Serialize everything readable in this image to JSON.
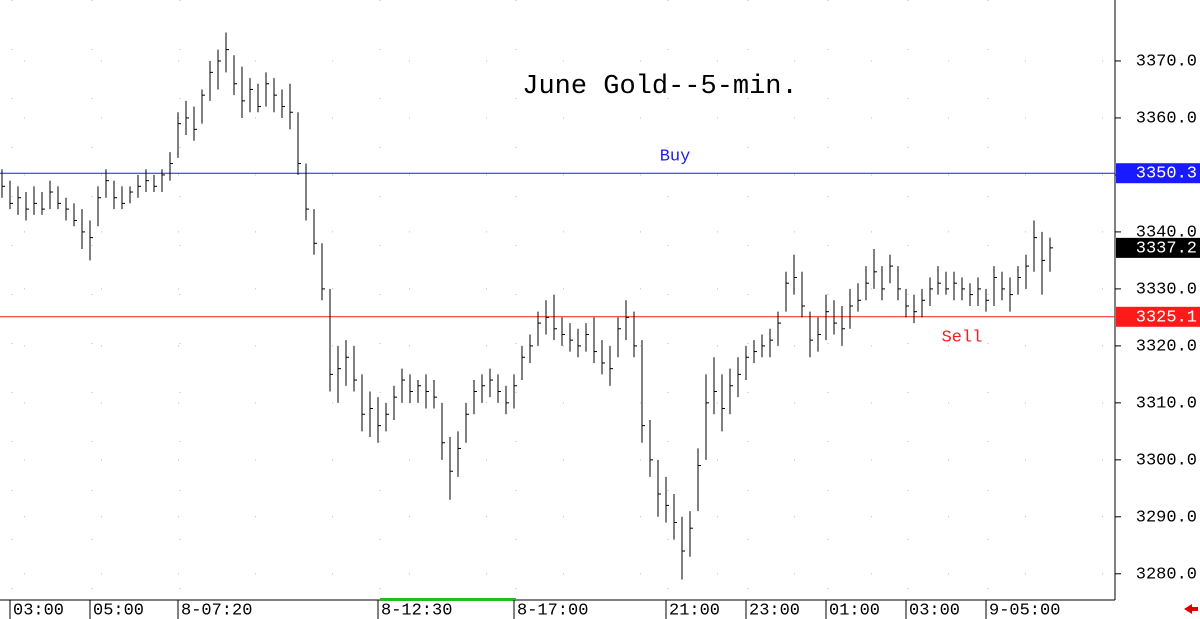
{
  "chart_data": {
    "type": "ohlc",
    "title": "June Gold--5-min.",
    "categories": [
      null,
      "03:00",
      null,
      null,
      null,
      null,
      null,
      null,
      null,
      null,
      null,
      "05:00",
      null,
      null,
      null,
      null,
      null,
      null,
      null,
      null,
      null,
      null,
      "8-07:20",
      null,
      null,
      null,
      null,
      null,
      null,
      null,
      null,
      null,
      null,
      null,
      null,
      null,
      null,
      null,
      null,
      null,
      null,
      null,
      null,
      null,
      null,
      null,
      null,
      "8-12:30",
      null,
      null,
      null,
      null,
      null,
      null,
      null,
      null,
      null,
      null,
      null,
      null,
      null,
      null,
      null,
      null,
      "8-17:00",
      null,
      null,
      null,
      null,
      null,
      null,
      null,
      null,
      null,
      null,
      null,
      null,
      null,
      null,
      null,
      null,
      null,
      null,
      "21:00",
      null,
      null,
      null,
      null,
      null,
      null,
      null,
      null,
      null,
      "23:00",
      null,
      null,
      null,
      null,
      null,
      null,
      null,
      null,
      null,
      "01:00",
      null,
      null,
      null,
      null,
      null,
      null,
      null,
      null,
      null,
      "03:00",
      null,
      null,
      null,
      null,
      null,
      null,
      null,
      null,
      null,
      "9-05:00",
      null,
      null,
      null,
      null,
      null,
      null,
      null,
      null
    ],
    "high": [
      3351,
      3349,
      3348,
      3347,
      3348,
      3347,
      3349,
      3348,
      3346,
      3345,
      3344,
      3342,
      3348,
      3351,
      3349,
      3348,
      3348,
      3350,
      3351,
      3350,
      3351,
      3354,
      3361,
      3363,
      3362,
      3365,
      3370,
      3372,
      3375,
      3371,
      3369,
      3367,
      3366,
      3368,
      3367,
      3365,
      3366,
      3361,
      3352,
      3344,
      3338,
      3330,
      3320,
      3321,
      3320,
      3315,
      3312,
      3311,
      3310,
      3313,
      3316,
      3315,
      3314,
      3315,
      3314,
      3310,
      3304,
      3305,
      3310,
      3314,
      3315,
      3316,
      3315,
      3313,
      3315,
      3320,
      3322,
      3326,
      3328,
      3329,
      3325,
      3324,
      3323,
      3324,
      3325,
      3321,
      3320,
      3325,
      3328,
      3326,
      3321,
      3307,
      3300,
      3297,
      3294,
      3290,
      3291,
      3302,
      3315,
      3318,
      3315,
      3316,
      3318,
      3320,
      3321,
      3322,
      3323,
      3326,
      3333,
      3336,
      3333,
      3326,
      3325,
      3329,
      3328,
      3327,
      3330,
      3331,
      3334,
      3337,
      3334,
      3336,
      3334,
      3330,
      3329,
      3330,
      3332,
      3334,
      3333,
      3333,
      3332,
      3331,
      3332,
      3330,
      3334,
      3333,
      3332,
      3334,
      3336,
      3342,
      3340,
      3339
    ],
    "low": [
      3346,
      3344,
      3343,
      3342,
      3343,
      3343,
      3344,
      3344,
      3342,
      3341,
      3337,
      3335,
      3341,
      3346,
      3344,
      3344,
      3345,
      3346,
      3347,
      3347,
      3347,
      3349,
      3353,
      3357,
      3356,
      3359,
      3363,
      3365,
      3368,
      3364,
      3360,
      3361,
      3361,
      3362,
      3361,
      3360,
      3358,
      3350,
      3342,
      3336,
      3328,
      3312,
      3310,
      3313,
      3312,
      3305,
      3304,
      3303,
      3305,
      3307,
      3310,
      3310,
      3310,
      3309,
      3309,
      3300,
      3293,
      3297,
      3303,
      3308,
      3310,
      3311,
      3310,
      3308,
      3309,
      3314,
      3317,
      3320,
      3322,
      3321,
      3320,
      3319,
      3318,
      3319,
      3317,
      3315,
      3313,
      3318,
      3321,
      3318,
      3303,
      3297,
      3290,
      3289,
      3286,
      3279,
      3283,
      3291,
      3300,
      3308,
      3305,
      3308,
      3311,
      3314,
      3317,
      3318,
      3318,
      3320,
      3326,
      3329,
      3325,
      3318,
      3319,
      3321,
      3322,
      3320,
      3323,
      3326,
      3328,
      3330,
      3328,
      3331,
      3328,
      3325,
      3324,
      3325,
      3327,
      3329,
      3329,
      3328,
      3328,
      3327,
      3327,
      3326,
      3327,
      3328,
      3326,
      3329,
      3330,
      3333,
      3329,
      3333
    ],
    "close": [
      3348,
      3345,
      3346,
      3344,
      3345,
      3344,
      3347,
      3345,
      3344,
      3342,
      3340,
      3339,
      3346,
      3349,
      3346,
      3345,
      3347,
      3348,
      3349,
      3348,
      3350,
      3352,
      3359,
      3360,
      3358,
      3364,
      3368,
      3370,
      3372,
      3366,
      3363,
      3365,
      3362,
      3366,
      3364,
      3362,
      3361,
      3352,
      3344,
      3338,
      3330,
      3315,
      3316,
      3318,
      3314,
      3308,
      3309,
      3306,
      3308,
      3311,
      3314,
      3312,
      3313,
      3312,
      3311,
      3303,
      3298,
      3302,
      3308,
      3312,
      3313,
      3314,
      3312,
      3310,
      3313,
      3318,
      3320,
      3324,
      3325,
      3323,
      3322,
      3321,
      3320,
      3322,
      3319,
      3317,
      3316,
      3323,
      3325,
      3320,
      3306,
      3300,
      3294,
      3292,
      3289,
      3284,
      3288,
      3299,
      3310,
      3312,
      3309,
      3313,
      3315,
      3318,
      3319,
      3320,
      3321,
      3324,
      3331,
      3332,
      3327,
      3321,
      3322,
      3326,
      3324,
      3323,
      3327,
      3328,
      3331,
      3333,
      3330,
      3334,
      3330,
      3327,
      3326,
      3328,
      3330,
      3331,
      3330,
      3331,
      3330,
      3329,
      3330,
      3328,
      3332,
      3330,
      3329,
      3332,
      3334,
      3339,
      3335,
      3337.2
    ],
    "color": "#000000",
    "levels": [
      {
        "name": "Buy",
        "value": 3350.3,
        "color": "#1a1aff"
      },
      {
        "name": "Sell",
        "value": 3325.1,
        "color": "#ff1a1a"
      }
    ],
    "last": 3337.2,
    "ylim": [
      3275.4,
      3380.7
    ],
    "yticks": [
      {
        "value": 3280,
        "label": "3280.0"
      },
      {
        "value": 3290,
        "label": "3290.0"
      },
      {
        "value": 3300,
        "label": "3300.0"
      },
      {
        "value": 3310,
        "label": "3310.0"
      },
      {
        "value": 3320,
        "label": "3320.0"
      },
      {
        "value": 3330,
        "label": "3330.0"
      },
      {
        "value": 3340,
        "label": "3340.0"
      },
      {
        "value": 3350,
        "label": "3350.0"
      },
      {
        "value": 3360,
        "label": "3360.0"
      },
      {
        "value": 3370,
        "label": "3370.0"
      }
    ],
    "grid": true
  }
}
